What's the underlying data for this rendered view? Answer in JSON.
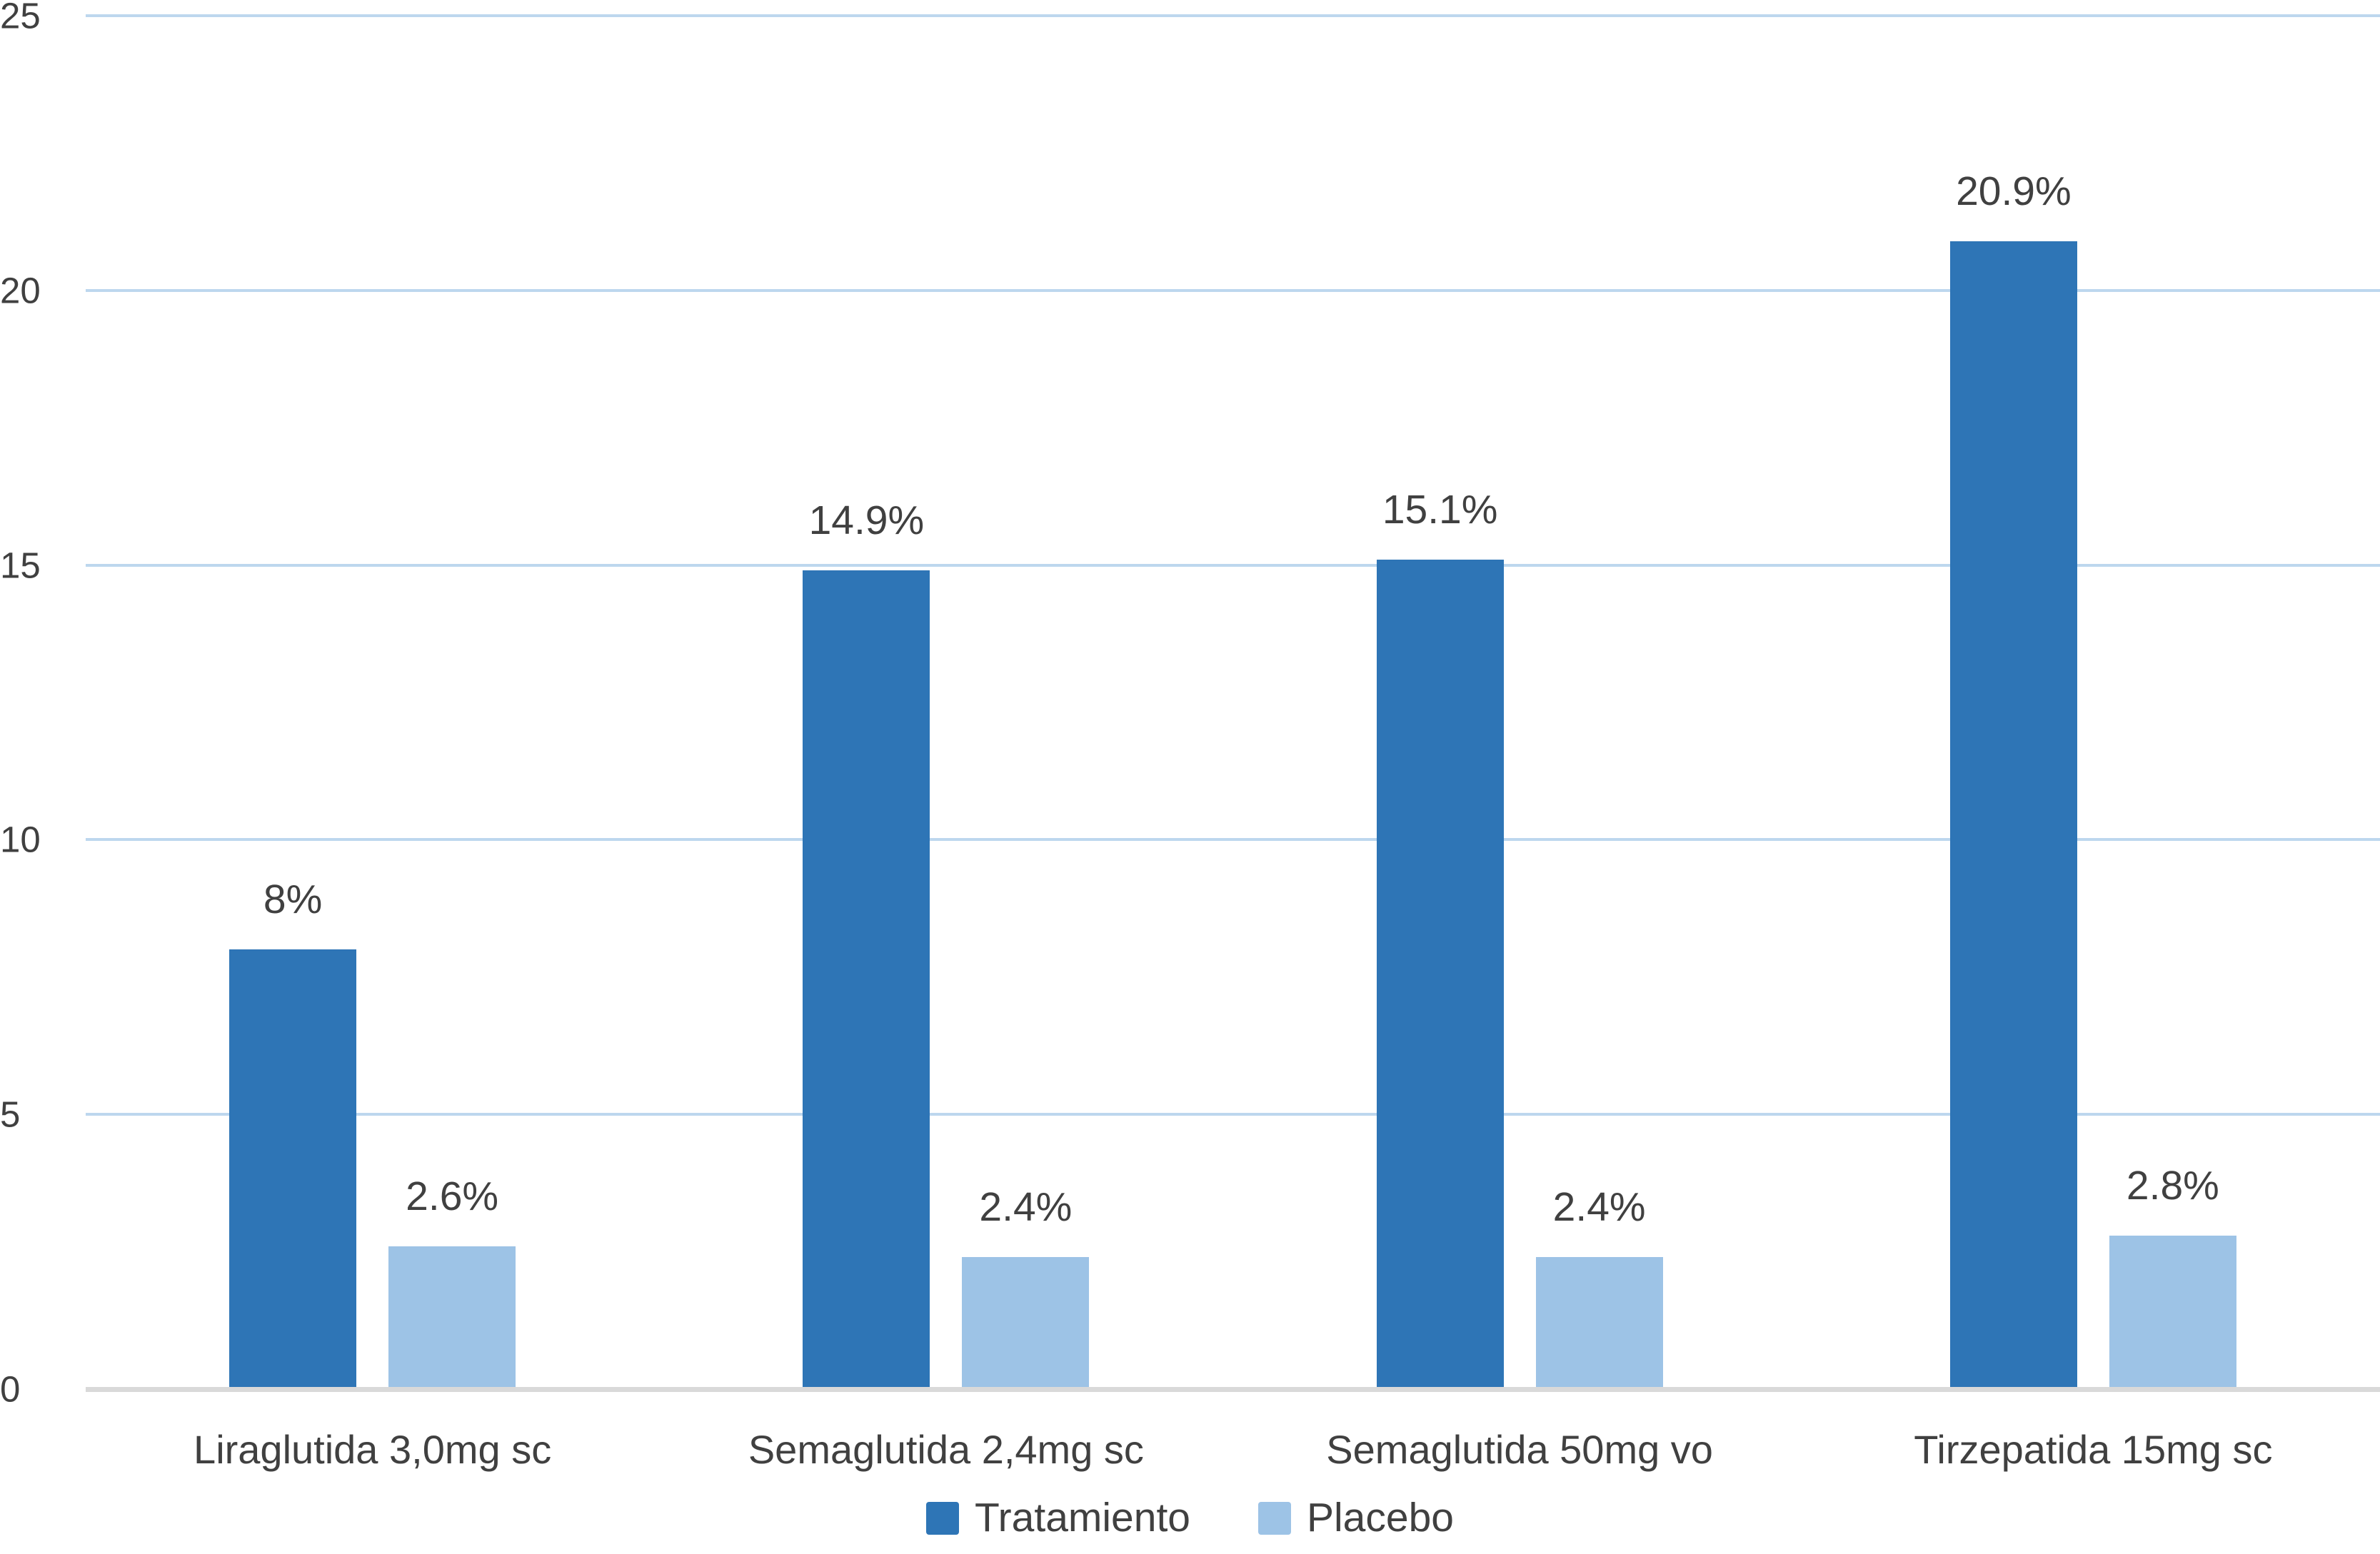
{
  "chart_data": {
    "type": "bar",
    "title": "",
    "xlabel": "",
    "ylabel": "",
    "categories": [
      "Liraglutida 3,0mg sc",
      "Semaglutida 2,4mg sc",
      "Semaglutida 50mg vo",
      "Tirzepatida 15mg sc"
    ],
    "series": [
      {
        "name": "Tratamiento",
        "color": "#2E75B6",
        "values": [
          8,
          14.9,
          15.1,
          20.9
        ],
        "data_labels": [
          "8%",
          "14.9%",
          "15.1%",
          "20.9%"
        ]
      },
      {
        "name": "Placebo",
        "color": "#9DC3E6",
        "values": [
          2.6,
          2.4,
          2.4,
          2.8
        ],
        "data_labels": [
          "2.6%",
          "2.4%",
          "2.4%",
          "2.8%"
        ]
      }
    ],
    "ylim": [
      0,
      25
    ],
    "yticks": [
      0,
      5,
      10,
      15,
      20,
      25
    ],
    "grid": "horizontal",
    "legend_position": "bottom",
    "colors": {
      "gridline": "#BDD7EE",
      "axis_line": "#D9D9D9",
      "text": "#404040"
    }
  }
}
